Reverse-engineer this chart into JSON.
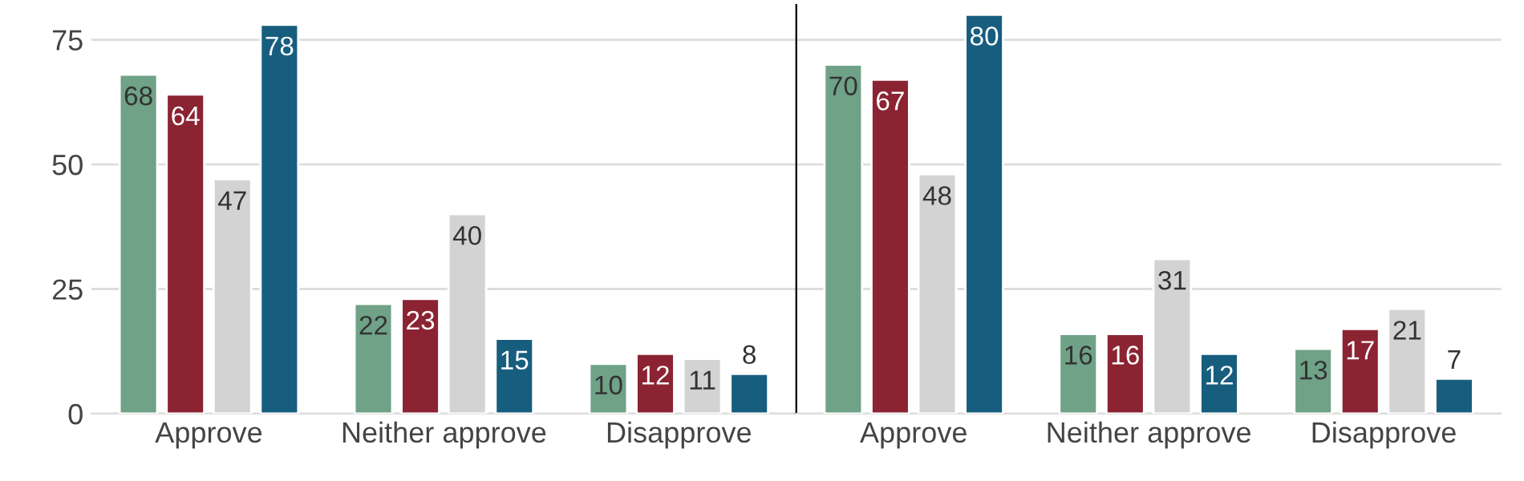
{
  "chart_data": [
    {
      "type": "bar",
      "categories": [
        "Approve",
        "Neither approve",
        "Disapprove"
      ],
      "ylim": [
        0,
        82
      ],
      "yticks": [
        0,
        25,
        50,
        75
      ],
      "grid": "y",
      "data_labels": true,
      "series": [
        {
          "color": "#6fa287",
          "values": [
            68,
            22,
            10
          ]
        },
        {
          "color": "#8b2332",
          "values": [
            64,
            23,
            12
          ]
        },
        {
          "color": "#d3d3d3",
          "values": [
            47,
            40,
            11
          ]
        },
        {
          "color": "#175e7e",
          "values": [
            78,
            15,
            8
          ]
        }
      ]
    },
    {
      "type": "bar",
      "categories": [
        "Approve",
        "Neither approve",
        "Disapprove"
      ],
      "ylim": [
        0,
        82
      ],
      "yticks": [
        0,
        25,
        50,
        75
      ],
      "grid": "y",
      "data_labels": true,
      "tick_labels": "x",
      "series": [
        {
          "color": "#6fa287",
          "values": [
            70,
            16,
            13
          ]
        },
        {
          "color": "#8b2332",
          "values": [
            67,
            16,
            17
          ]
        },
        {
          "color": "#d3d3d3",
          "values": [
            48,
            31,
            21
          ]
        },
        {
          "color": "#175e7e",
          "values": [
            80,
            12,
            7
          ]
        }
      ]
    }
  ]
}
